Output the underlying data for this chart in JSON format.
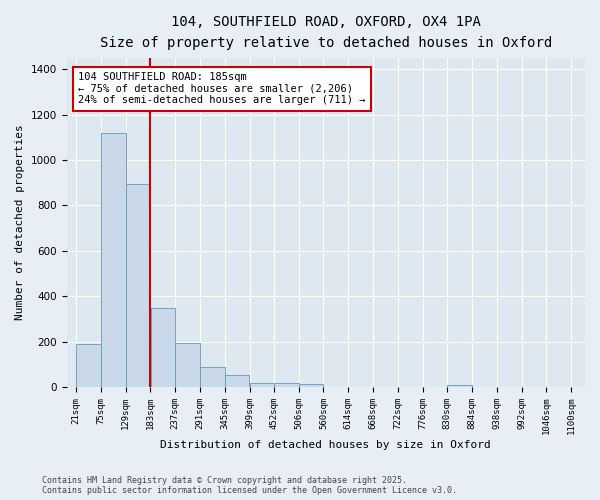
{
  "title": "104, SOUTHFIELD ROAD, OXFORD, OX4 1PA",
  "subtitle": "Size of property relative to detached houses in Oxford",
  "xlabel": "Distribution of detached houses by size in Oxford",
  "ylabel": "Number of detached properties",
  "bar_color": "#c9d9ea",
  "bar_edge_color": "#6699bb",
  "background_color": "#dde8f0",
  "fig_background_color": "#e8eef5",
  "grid_color": "#ffffff",
  "red_line_color": "#cc0000",
  "red_line_x": 183,
  "annotation_text": "104 SOUTHFIELD ROAD: 185sqm\n← 75% of detached houses are smaller (2,206)\n24% of semi-detached houses are larger (711) →",
  "annotation_box_color": "#ffffff",
  "annotation_box_edge_color": "#cc0000",
  "bins": [
    21,
    75,
    129,
    183,
    237,
    291,
    345,
    399,
    452,
    506,
    560,
    614,
    668,
    722,
    776,
    830,
    884,
    938,
    992,
    1046,
    1100
  ],
  "counts": [
    190,
    1120,
    895,
    350,
    195,
    90,
    55,
    20,
    20,
    15,
    0,
    0,
    0,
    0,
    0,
    10,
    0,
    0,
    0,
    0
  ],
  "tick_labels": [
    "21sqm",
    "75sqm",
    "129sqm",
    "183sqm",
    "237sqm",
    "291sqm",
    "345sqm",
    "399sqm",
    "452sqm",
    "506sqm",
    "560sqm",
    "614sqm",
    "668sqm",
    "722sqm",
    "776sqm",
    "830sqm",
    "884sqm",
    "938sqm",
    "992sqm",
    "1046sqm",
    "1100sqm"
  ],
  "ylim": [
    0,
    1450
  ],
  "xlim_left": 0,
  "xlim_right": 1130,
  "footer_text": "Contains HM Land Registry data © Crown copyright and database right 2025.\nContains public sector information licensed under the Open Government Licence v3.0.",
  "title_fontsize": 10,
  "subtitle_fontsize": 9,
  "xlabel_fontsize": 8,
  "ylabel_fontsize": 8,
  "tick_fontsize": 6.5,
  "annotation_fontsize": 7.5,
  "footer_fontsize": 6
}
